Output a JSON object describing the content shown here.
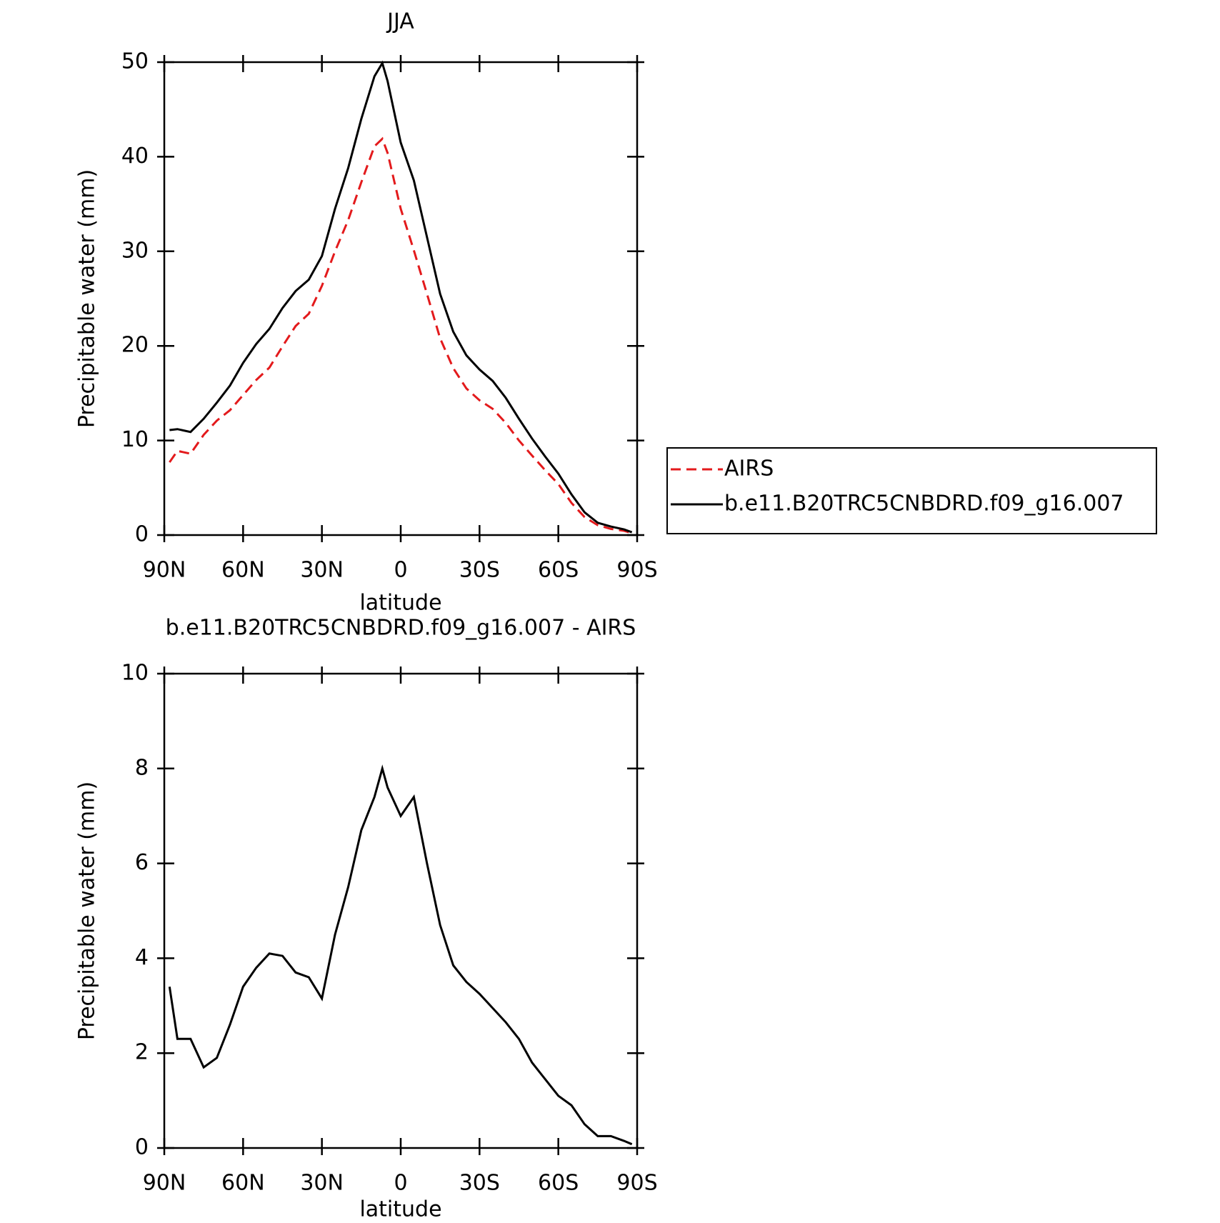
{
  "chart_data": [
    {
      "type": "line",
      "title": "JJA",
      "x_label": "latitude",
      "y_label": "Precipitable water (mm)",
      "x": [
        88,
        85,
        80,
        75,
        70,
        65,
        60,
        55,
        50,
        45,
        40,
        35,
        30,
        25,
        20,
        15,
        10,
        7,
        5,
        0,
        -5,
        -10,
        -15,
        -20,
        -25,
        -30,
        -35,
        -40,
        -45,
        -50,
        -55,
        -60,
        -65,
        -70,
        -75,
        -80,
        -85,
        -88
      ],
      "series": [
        {
          "name": "AIRS",
          "color": "#e31a1c",
          "style": "dashed",
          "values": [
            7.7,
            8.9,
            8.6,
            10.6,
            12.1,
            13.2,
            14.8,
            16.4,
            17.7,
            19.95,
            22.1,
            23.4,
            26.35,
            30,
            33.3,
            37.3,
            41.1,
            41.9,
            40.4,
            34.5,
            30.1,
            25.5,
            20.8,
            17.65,
            15.5,
            14.25,
            13.35,
            11.85,
            10.0,
            8.4,
            6.85,
            5.4,
            3.4,
            1.9,
            1.05,
            0.65,
            0.45,
            0.22
          ]
        },
        {
          "name": "b.e11.B20TRC5CNBDRD.f09_g16.007",
          "color": "#000000",
          "style": "solid",
          "values": [
            11.1,
            11.2,
            10.9,
            12.3,
            14,
            15.8,
            18.2,
            20.2,
            21.8,
            24,
            25.8,
            27,
            29.5,
            34.5,
            38.8,
            44,
            48.5,
            49.9,
            48,
            41.5,
            37.5,
            31.5,
            25.5,
            21.5,
            19,
            17.5,
            16.3,
            14.5,
            12.3,
            10.2,
            8.3,
            6.5,
            4.3,
            2.4,
            1.3,
            0.9,
            0.6,
            0.3
          ]
        }
      ],
      "xlim": [
        90,
        -90
      ],
      "xticks": [
        {
          "value": 90,
          "label": "90N"
        },
        {
          "value": 60,
          "label": "60N"
        },
        {
          "value": 30,
          "label": "30N"
        },
        0,
        {
          "value": -30,
          "label": "30S"
        },
        {
          "value": -60,
          "label": "60S"
        },
        {
          "value": -90,
          "label": "90S"
        }
      ],
      "ylim": [
        0,
        50
      ],
      "yticks": [
        0,
        10,
        20,
        30,
        40,
        50
      ],
      "legend": "right"
    },
    {
      "type": "line",
      "title": "b.e11.B20TRC5CNBDRD.f09_g16.007 - AIRS",
      "x_label": "latitude",
      "y_label": "Precipitable water (mm)",
      "x": [
        88,
        85,
        80,
        75,
        70,
        65,
        60,
        55,
        50,
        45,
        40,
        35,
        30,
        25,
        20,
        15,
        10,
        7,
        5,
        0,
        -5,
        -10,
        -15,
        -20,
        -25,
        -30,
        -35,
        -40,
        -45,
        -50,
        -55,
        -60,
        -65,
        -70,
        -75,
        -80,
        -85,
        -88
      ],
      "series": [
        {
          "color": "#000000",
          "style": "solid",
          "values": [
            3.4,
            2.3,
            2.3,
            1.7,
            1.9,
            2.6,
            3.4,
            3.8,
            4.1,
            4.05,
            3.7,
            3.6,
            3.15,
            4.5,
            5.5,
            6.7,
            7.4,
            8.0,
            7.6,
            7.0,
            7.4,
            6.0,
            4.7,
            3.85,
            3.5,
            3.25,
            2.95,
            2.65,
            2.3,
            1.8,
            1.45,
            1.1,
            0.9,
            0.5,
            0.25,
            0.25,
            0.15,
            0.08
          ]
        }
      ],
      "xlim": [
        90,
        -90
      ],
      "xticks": [
        {
          "value": 90,
          "label": "90N"
        },
        {
          "value": 60,
          "label": "60N"
        },
        {
          "value": 30,
          "label": "30N"
        },
        0,
        {
          "value": -30,
          "label": "30S"
        },
        {
          "value": -60,
          "label": "60S"
        },
        {
          "value": -90,
          "label": "90S"
        }
      ],
      "ylim": [
        0,
        10
      ],
      "yticks": [
        0,
        2,
        4,
        6,
        8,
        10
      ]
    }
  ]
}
